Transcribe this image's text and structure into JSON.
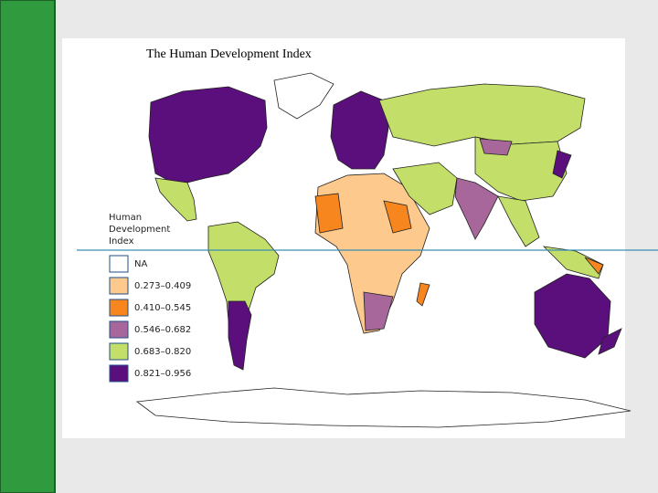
{
  "title": "The Human Development Index",
  "legend": {
    "title_lines": [
      "Human",
      "Development",
      "Index"
    ],
    "items": [
      {
        "label": "NA",
        "color": "#ffffff"
      },
      {
        "label": "0.273–0.409",
        "color": "#fdc98c"
      },
      {
        "label": "0.410–0.545",
        "color": "#f7861f"
      },
      {
        "label": "0.546–0.682",
        "color": "#a8679a"
      },
      {
        "label": "0.683–0.820",
        "color": "#c3df6a"
      },
      {
        "label": "0.821–0.956",
        "color": "#5b0f7c"
      }
    ]
  }
}
